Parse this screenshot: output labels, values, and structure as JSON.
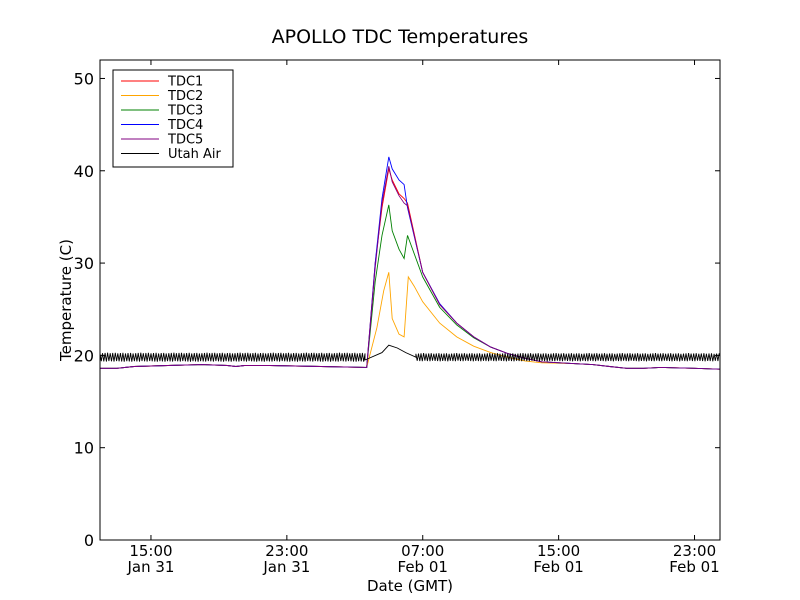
{
  "chart_data": {
    "type": "line",
    "title": "APOLLO TDC Temperatures",
    "xlabel": "Date (GMT)",
    "ylabel": "Temperature (C)",
    "xlim": [
      12,
      48.5
    ],
    "ylim": [
      0,
      52
    ],
    "x_unit": "hours since Jan 31 00:00 GMT",
    "x_ticks": [
      {
        "x": 15,
        "time": "15:00",
        "date": "Jan 31"
      },
      {
        "x": 23,
        "time": "23:00",
        "date": "Jan 31"
      },
      {
        "x": 31,
        "time": "07:00",
        "date": "Feb 01"
      },
      {
        "x": 39,
        "time": "15:00",
        "date": "Feb 01"
      },
      {
        "x": 47,
        "time": "23:00",
        "date": "Feb 01"
      }
    ],
    "y_ticks": [
      0,
      10,
      20,
      30,
      40,
      50
    ],
    "grid": false,
    "legend_position": "top-left",
    "series": [
      {
        "name": "TDC1",
        "color": "#ff0000",
        "points": [
          [
            12,
            18.6
          ],
          [
            13,
            18.6
          ],
          [
            14,
            18.8
          ],
          [
            16,
            18.9
          ],
          [
            18,
            19.0
          ],
          [
            19.5,
            18.9
          ],
          [
            20,
            18.8
          ],
          [
            20.5,
            18.9
          ],
          [
            22,
            18.9
          ],
          [
            25,
            18.8
          ],
          [
            27.7,
            18.7
          ],
          [
            28.2,
            30
          ],
          [
            28.6,
            36
          ],
          [
            29,
            40.2
          ],
          [
            29.2,
            39
          ],
          [
            29.6,
            37.5
          ],
          [
            29.9,
            37
          ],
          [
            30.1,
            36.5
          ],
          [
            31,
            29
          ],
          [
            32,
            25.5
          ],
          [
            33,
            23.5
          ],
          [
            34,
            22
          ],
          [
            35,
            20.9
          ],
          [
            36,
            20.2
          ],
          [
            37,
            19.7
          ],
          [
            38,
            19.3
          ],
          [
            40,
            19.1
          ],
          [
            41,
            19.0
          ],
          [
            42,
            18.8
          ],
          [
            43,
            18.6
          ],
          [
            44,
            18.6
          ],
          [
            45,
            18.7
          ],
          [
            47,
            18.6
          ],
          [
            48.5,
            18.5
          ]
        ]
      },
      {
        "name": "TDC2",
        "color": "#ffa500",
        "points": [
          [
            12,
            18.6
          ],
          [
            13,
            18.6
          ],
          [
            14,
            18.8
          ],
          [
            16,
            18.9
          ],
          [
            18,
            19.0
          ],
          [
            19.5,
            18.9
          ],
          [
            20,
            18.8
          ],
          [
            20.5,
            18.9
          ],
          [
            22,
            18.9
          ],
          [
            25,
            18.8
          ],
          [
            27.7,
            18.7
          ],
          [
            28.3,
            23
          ],
          [
            28.7,
            27
          ],
          [
            29,
            29
          ],
          [
            29.2,
            24
          ],
          [
            29.6,
            22.3
          ],
          [
            29.9,
            22
          ],
          [
            30.15,
            28.5
          ],
          [
            30.5,
            27.5
          ],
          [
            31,
            25.8
          ],
          [
            32,
            23.5
          ],
          [
            33,
            22
          ],
          [
            34,
            21
          ],
          [
            35,
            20.3
          ],
          [
            36,
            19.8
          ],
          [
            37,
            19.4
          ],
          [
            38,
            19.2
          ],
          [
            40,
            19.1
          ],
          [
            41,
            19.0
          ],
          [
            42,
            18.8
          ],
          [
            43,
            18.6
          ],
          [
            44,
            18.6
          ],
          [
            45,
            18.7
          ],
          [
            47,
            18.6
          ],
          [
            48.5,
            18.5
          ]
        ]
      },
      {
        "name": "TDC3",
        "color": "#008000",
        "points": [
          [
            12,
            18.6
          ],
          [
            13,
            18.6
          ],
          [
            14,
            18.8
          ],
          [
            16,
            18.9
          ],
          [
            18,
            19.0
          ],
          [
            19.5,
            18.9
          ],
          [
            20,
            18.8
          ],
          [
            20.5,
            18.9
          ],
          [
            22,
            18.9
          ],
          [
            25,
            18.8
          ],
          [
            27.7,
            18.7
          ],
          [
            28.2,
            28
          ],
          [
            28.6,
            33
          ],
          [
            29,
            36.3
          ],
          [
            29.2,
            33.5
          ],
          [
            29.6,
            31.5
          ],
          [
            29.9,
            30.5
          ],
          [
            30.1,
            33
          ],
          [
            31,
            28.5
          ],
          [
            32,
            25.2
          ],
          [
            33,
            23.3
          ],
          [
            34,
            21.9
          ],
          [
            35,
            20.9
          ],
          [
            36,
            20.2
          ],
          [
            37,
            19.7
          ],
          [
            38,
            19.3
          ],
          [
            40,
            19.1
          ],
          [
            41,
            19.0
          ],
          [
            42,
            18.8
          ],
          [
            43,
            18.6
          ],
          [
            44,
            18.6
          ],
          [
            45,
            18.7
          ],
          [
            47,
            18.6
          ],
          [
            48.5,
            18.5
          ]
        ]
      },
      {
        "name": "TDC4",
        "color": "#0000ff",
        "points": [
          [
            12,
            18.6
          ],
          [
            13,
            18.6
          ],
          [
            14,
            18.8
          ],
          [
            16,
            18.9
          ],
          [
            18,
            19.0
          ],
          [
            19.5,
            18.9
          ],
          [
            20,
            18.8
          ],
          [
            20.5,
            18.9
          ],
          [
            22,
            18.9
          ],
          [
            25,
            18.8
          ],
          [
            27.7,
            18.7
          ],
          [
            28.2,
            30
          ],
          [
            28.6,
            37
          ],
          [
            29,
            41.5
          ],
          [
            29.2,
            40.2
          ],
          [
            29.6,
            39
          ],
          [
            29.9,
            38.5
          ],
          [
            30.1,
            36
          ],
          [
            31,
            29
          ],
          [
            32,
            25.6
          ],
          [
            33,
            23.5
          ],
          [
            34,
            22
          ],
          [
            35,
            20.9
          ],
          [
            36,
            20.2
          ],
          [
            37,
            19.7
          ],
          [
            38,
            19.3
          ],
          [
            40,
            19.1
          ],
          [
            41,
            19.0
          ],
          [
            42,
            18.8
          ],
          [
            43,
            18.6
          ],
          [
            44,
            18.6
          ],
          [
            45,
            18.7
          ],
          [
            47,
            18.6
          ],
          [
            48.5,
            18.5
          ]
        ]
      },
      {
        "name": "TDC5",
        "color": "#800080",
        "points": [
          [
            12,
            18.6
          ],
          [
            13,
            18.6
          ],
          [
            14,
            18.8
          ],
          [
            16,
            18.9
          ],
          [
            18,
            19.0
          ],
          [
            19.5,
            18.9
          ],
          [
            20,
            18.8
          ],
          [
            20.5,
            18.9
          ],
          [
            22,
            18.9
          ],
          [
            25,
            18.8
          ],
          [
            27.7,
            18.7
          ],
          [
            28.2,
            29.5
          ],
          [
            28.6,
            36.5
          ],
          [
            29,
            40.5
          ],
          [
            29.2,
            38.8
          ],
          [
            29.6,
            37.3
          ],
          [
            29.9,
            36.5
          ],
          [
            30.1,
            36.2
          ],
          [
            31,
            29
          ],
          [
            32,
            25.5
          ],
          [
            33,
            23.5
          ],
          [
            34,
            22
          ],
          [
            35,
            20.9
          ],
          [
            36,
            20.2
          ],
          [
            37,
            19.7
          ],
          [
            38,
            19.3
          ],
          [
            40,
            19.1
          ],
          [
            41,
            19.0
          ],
          [
            42,
            18.8
          ],
          [
            43,
            18.6
          ],
          [
            44,
            18.6
          ],
          [
            45,
            18.7
          ],
          [
            47,
            18.6
          ],
          [
            48.5,
            18.5
          ]
        ]
      },
      {
        "name": "Utah Air",
        "color": "#000000",
        "noise_ranges": [
          [
            12,
            27.6,
            19.8,
            0.55
          ],
          [
            30.6,
            48.5,
            19.8,
            0.5
          ]
        ],
        "points": [
          [
            27.6,
            19.5
          ],
          [
            28.6,
            20.3
          ],
          [
            29,
            21.1
          ],
          [
            29.5,
            20.8
          ],
          [
            30,
            20.3
          ],
          [
            30.6,
            19.8
          ]
        ]
      }
    ]
  }
}
